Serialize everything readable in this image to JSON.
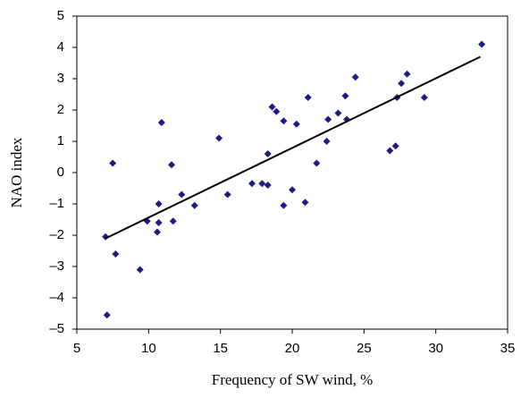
{
  "chart_data": {
    "type": "scatter",
    "xlabel": "Frequency of SW wind, %",
    "ylabel": "NAO index",
    "x": [
      7.0,
      7.1,
      7.5,
      7.7,
      9.4,
      9.9,
      10.6,
      10.7,
      10.7,
      10.9,
      11.6,
      11.7,
      12.3,
      13.2,
      14.9,
      15.5,
      17.2,
      17.9,
      18.3,
      18.3,
      18.6,
      18.9,
      19.4,
      19.4,
      20.0,
      20.3,
      20.9,
      21.1,
      21.7,
      22.4,
      22.5,
      23.2,
      23.7,
      23.8,
      24.4,
      26.8,
      27.2,
      27.3,
      27.6,
      28.0,
      29.2,
      33.2
    ],
    "values": [
      -2.05,
      -4.55,
      0.3,
      -2.6,
      -3.1,
      -1.55,
      -1.9,
      -1.0,
      -1.6,
      1.6,
      0.25,
      -1.55,
      -0.7,
      -1.05,
      1.1,
      -0.7,
      -0.35,
      -0.35,
      -0.4,
      0.6,
      2.1,
      1.95,
      1.65,
      -1.05,
      -0.55,
      1.55,
      -0.95,
      2.4,
      0.3,
      1.0,
      1.7,
      1.9,
      2.45,
      1.7,
      3.05,
      0.7,
      0.85,
      2.4,
      2.85,
      3.15,
      2.4,
      4.1
    ],
    "color": "#1c1c84",
    "trendline": {
      "x": [
        7.0,
        33.1
      ],
      "y": [
        -2.1,
        3.7
      ],
      "color": "#000000"
    },
    "xlim": [
      5,
      35
    ],
    "xticks": [
      5,
      10,
      15,
      20,
      25,
      30,
      35
    ],
    "ylim": [
      -5,
      5
    ],
    "yticks": [
      {
        "value": -5,
        "label": "–5"
      },
      {
        "value": -4,
        "label": "–4"
      },
      {
        "value": -3,
        "label": "–3"
      },
      {
        "value": -2,
        "label": "–2"
      },
      {
        "value": -1,
        "label": "–1"
      },
      0,
      1,
      2,
      3,
      4,
      5
    ],
    "grid": false
  }
}
